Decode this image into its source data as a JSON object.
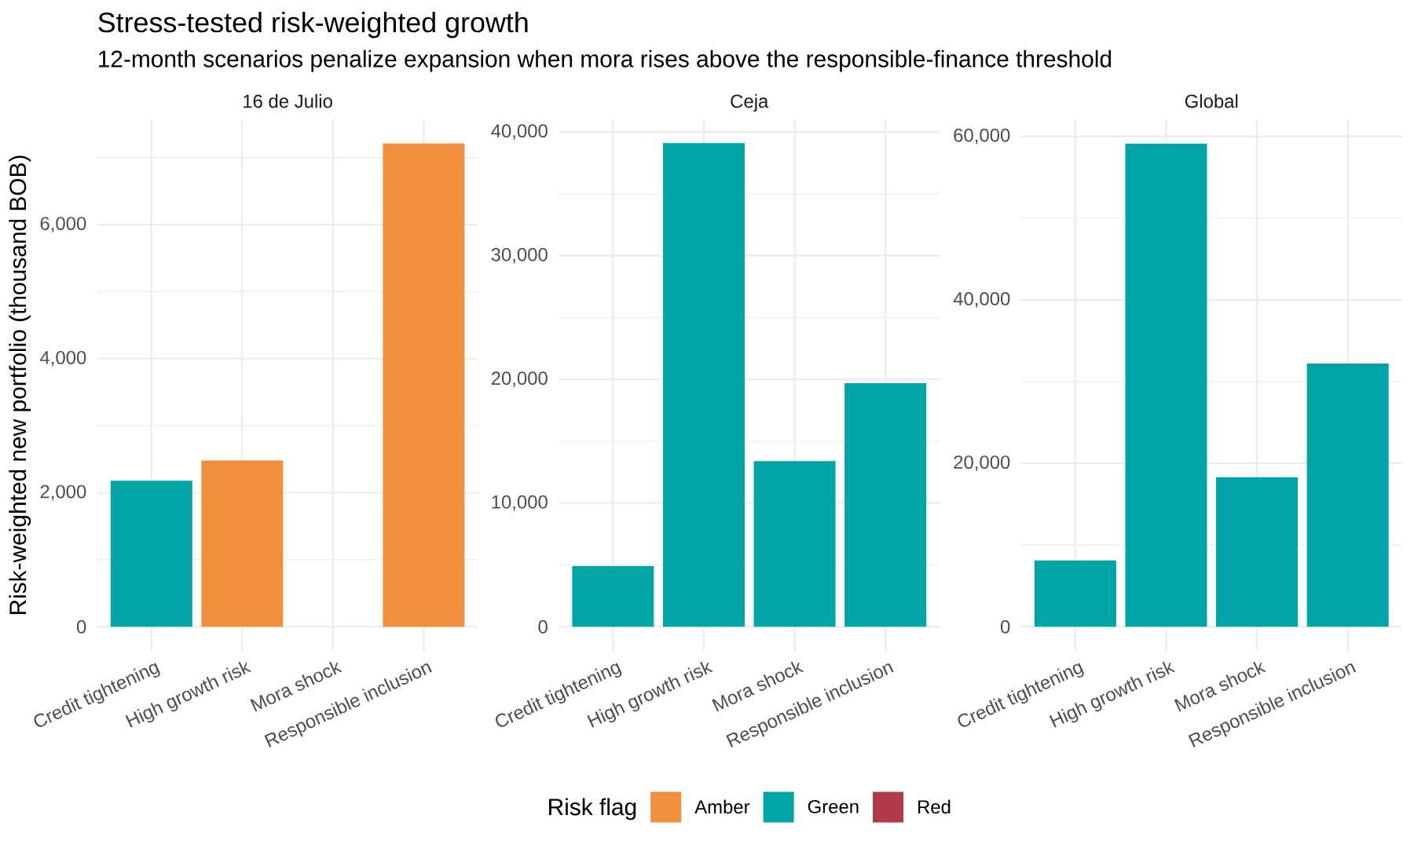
{
  "chart_data": [
    {
      "type": "bar",
      "title": "Stress-tested risk-weighted growth",
      "subtitle": "12-month scenarios penalize expansion when mora rises above the responsible-finance threshold",
      "annotations": [
        "16 de Julio"
      ],
      "ylabel": "Risk-weighted new portfolio (thousand BOB)",
      "legend_title": "Risk flag",
      "legend": "bottom",
      "grid": true,
      "categories": [
        "Credit tightening",
        "High growth risk",
        "Mora shock",
        "Responsible inclusion"
      ],
      "series": [
        {
          "name": "Amber",
          "color": "#F18F3C",
          "values": [
            null,
            2480,
            null,
            7210
          ]
        },
        {
          "name": "Green",
          "color": "#00A6A6",
          "values": [
            2180,
            null,
            null,
            null
          ]
        },
        {
          "name": "Red",
          "color": "#B23A48",
          "values": [
            null,
            null,
            null,
            null
          ]
        }
      ],
      "ylim": [
        -360,
        7570
      ],
      "yticks": [
        0,
        {
          "value": 1000,
          "label": null
        },
        {
          "value": 2000,
          "label": "2,000"
        },
        {
          "value": 3000,
          "label": null
        },
        {
          "value": 4000,
          "label": "4,000"
        },
        {
          "value": 5000,
          "label": null
        },
        {
          "value": 6000,
          "label": "6,000"
        },
        {
          "value": 7000,
          "label": null
        }
      ]
    },
    {
      "type": "bar",
      "annotations": [
        "Ceja"
      ],
      "grid": true,
      "categories": [
        "Credit tightening",
        "High growth risk",
        "Mora shock",
        "Responsible inclusion"
      ],
      "series": [
        {
          "color": "#00A6A6",
          "values": [
            4900,
            39100,
            13400,
            19700
          ]
        }
      ],
      "ylim": [
        -1950,
        41020
      ],
      "yticks": [
        0,
        {
          "value": 5000,
          "label": null
        },
        {
          "value": 10000,
          "label": "10,000"
        },
        {
          "value": 15000,
          "label": null
        },
        {
          "value": 20000,
          "label": "20,000"
        },
        {
          "value": 25000,
          "label": null
        },
        {
          "value": 30000,
          "label": "30,000"
        },
        {
          "value": 35000,
          "label": null
        },
        {
          "value": 40000,
          "label": "40,000"
        }
      ]
    },
    {
      "type": "bar",
      "annotations": [
        "Global"
      ],
      "grid": true,
      "categories": [
        "Credit tightening",
        "High growth risk",
        "Mora shock",
        "Responsible inclusion"
      ],
      "series": [
        {
          "color": "#00A6A6",
          "values": [
            8100,
            59100,
            18300,
            32200
          ]
        }
      ],
      "ylim": [
        -2960,
        62080
      ],
      "yticks": [
        0,
        {
          "value": 10000,
          "label": null
        },
        {
          "value": 20000,
          "label": "20,000"
        },
        {
          "value": 30000,
          "label": null
        },
        {
          "value": 40000,
          "label": "40,000"
        },
        {
          "value": 50000,
          "label": null
        },
        {
          "value": 60000,
          "label": "60,000"
        }
      ]
    }
  ]
}
